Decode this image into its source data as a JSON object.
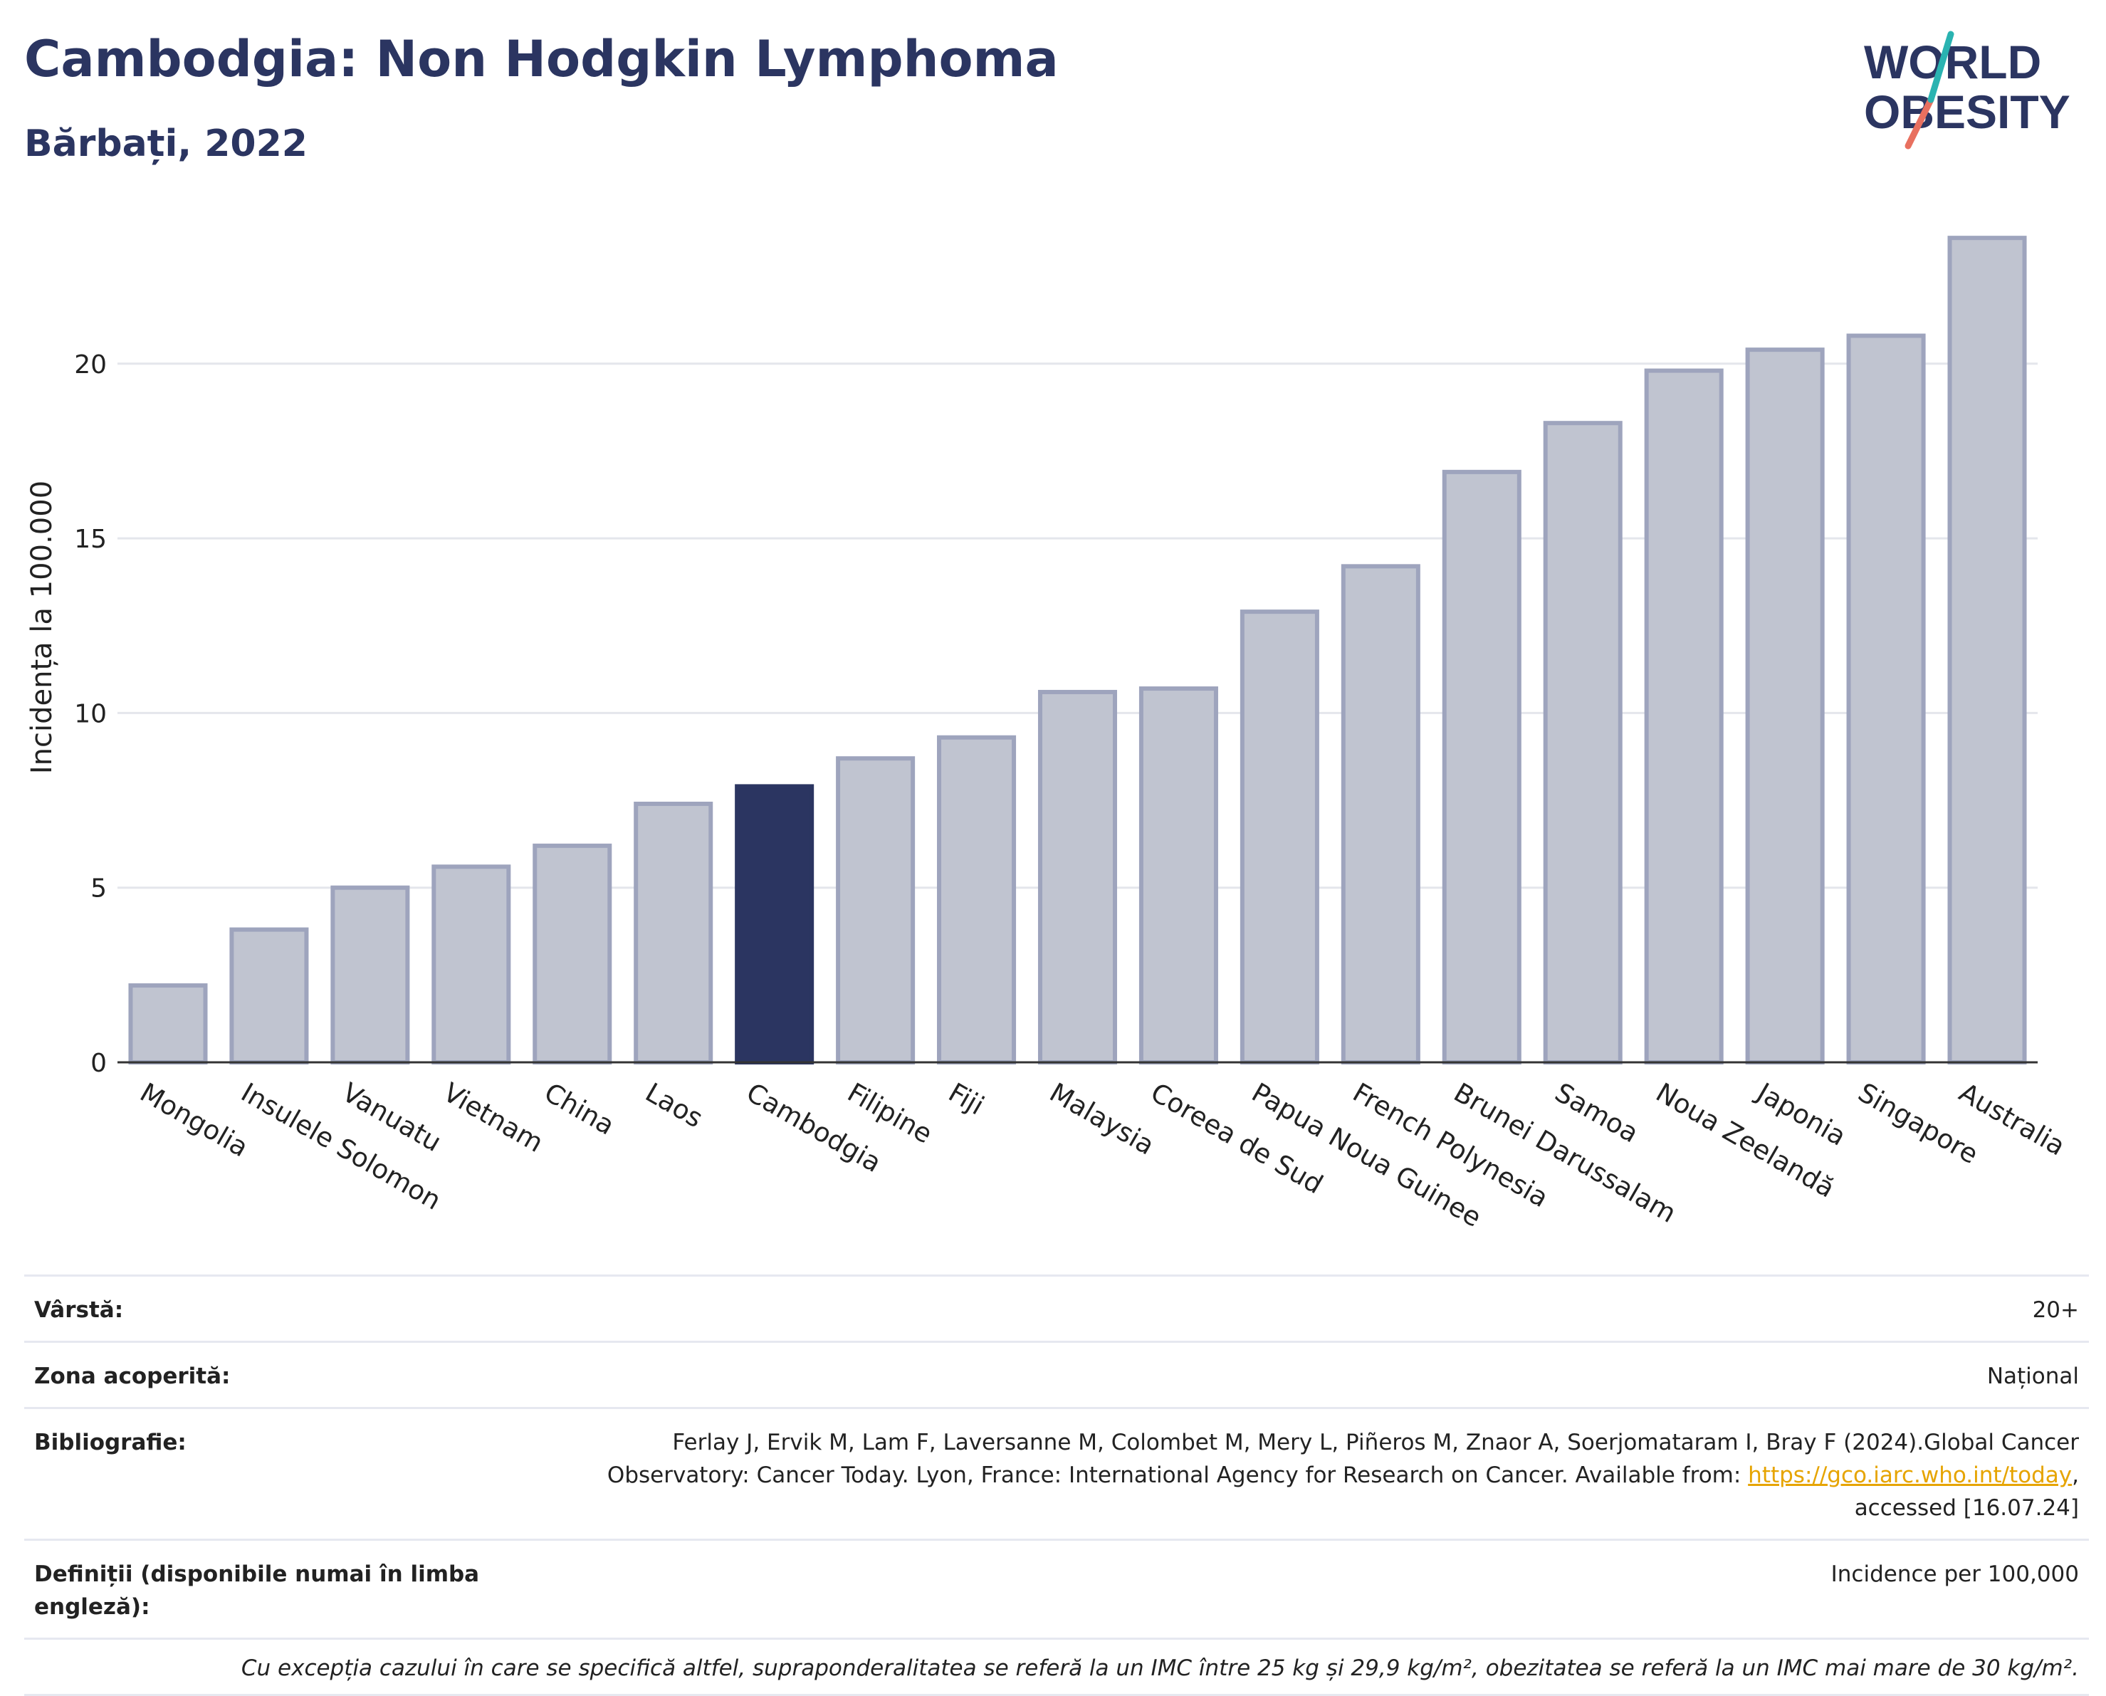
{
  "header": {
    "title": "Cambodgia: Non Hodgkin Lymphoma",
    "subtitle": "Bărbați, 2022"
  },
  "logo": {
    "line1": "WORLD",
    "line2": "OBESITY"
  },
  "chart_data": {
    "type": "bar",
    "ylabel": "Incidența la 100.000",
    "xlabel": "",
    "ylim": [
      0,
      24.5
    ],
    "yticks": [
      0,
      5,
      10,
      15,
      20
    ],
    "grid": true,
    "highlight": "Cambodgia",
    "colors": {
      "bar": "#c0c4d0",
      "bar_edge": "#9ea4bd",
      "highlight": "#2b3561"
    },
    "categories": [
      "Mongolia",
      "Insulele Solomon",
      "Vanuatu",
      "Vietnam",
      "China",
      "Laos",
      "Cambodgia",
      "Filipine",
      "Fiji",
      "Malaysia",
      "Coreea de Sud",
      "Papua Noua Guinee",
      "French Polynesia",
      "Brunei Darussalam",
      "Samoa",
      "Noua Zeelandă",
      "Japonia",
      "Singapore",
      "Australia"
    ],
    "values": [
      2.2,
      3.8,
      5.0,
      5.6,
      6.2,
      7.4,
      7.9,
      8.7,
      9.3,
      10.6,
      10.7,
      12.9,
      14.2,
      16.9,
      18.3,
      19.8,
      20.4,
      20.8,
      23.6
    ]
  },
  "meta": {
    "rows": [
      {
        "label": "Vârstă:",
        "value": "20+"
      },
      {
        "label": "Zona acoperită:",
        "value": "Național"
      },
      {
        "label": "Bibliografie:",
        "value_line1": "Ferlay J, Ervik M, Lam F, Laversanne M, Colombet M, Mery L, Piñeros M, Znaor A, Soerjomataram I, Bray F (2024).Global Cancer",
        "value_line2": "Observatory: Cancer Today. Lyon, France: International Agency for Research on Cancer. Available from: ",
        "link": "https://gco.iarc.who.int/today",
        "value_line2_end": ",",
        "value_line3": "accessed [16.07.24]"
      },
      {
        "label": "Definiții (disponibile numai în limba engleză):",
        "value": "Incidence per 100,000"
      }
    ],
    "note": "Cu excepția cazului în care se specifică altfel, supraponderalitatea se referă la un IMC între 25 kg și 29,9 kg/m², obezitatea se referă la un IMC mai mare de 30 kg/m²."
  }
}
